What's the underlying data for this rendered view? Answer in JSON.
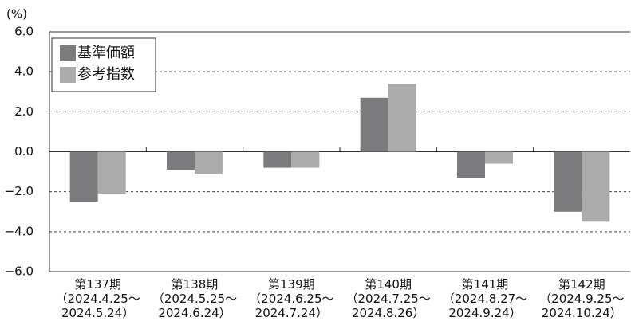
{
  "chart_data": {
    "type": "bar",
    "y_label": "(%)",
    "categories": [
      "第137期\n（2024.4.25～\n2024.5.24）",
      "第138期\n（2024.5.25～\n2024.6.24）",
      "第139期\n（2024.6.25～\n2024.7.24）",
      "第140期\n（2024.7.25～\n2024.8.26）",
      "第141期\n（2024.8.27～\n2024.9.24）",
      "第142期\n（2024.9.25～\n2024.10.24）"
    ],
    "series": [
      {
        "name": "基準価額",
        "color": "#7b7b7d",
        "values": [
          -2.5,
          -0.9,
          -0.8,
          2.7,
          -1.3,
          -3.0
        ]
      },
      {
        "name": "参考指数",
        "color": "#ababab",
        "values": [
          -2.1,
          -1.1,
          -0.8,
          3.4,
          -0.6,
          -3.5
        ]
      }
    ],
    "ylim": [
      -6,
      6
    ],
    "yticks": [
      {
        "value": -6,
        "label": "−6.0"
      },
      {
        "value": -4,
        "label": "−4.0"
      },
      {
        "value": -2,
        "label": "−2.0"
      },
      {
        "value": 0,
        "label": "0.0"
      },
      {
        "value": 2,
        "label": "2.0"
      },
      {
        "value": 4,
        "label": "4.0"
      },
      {
        "value": 6,
        "label": "6.0"
      }
    ],
    "grid": true,
    "legend": "upper left"
  }
}
